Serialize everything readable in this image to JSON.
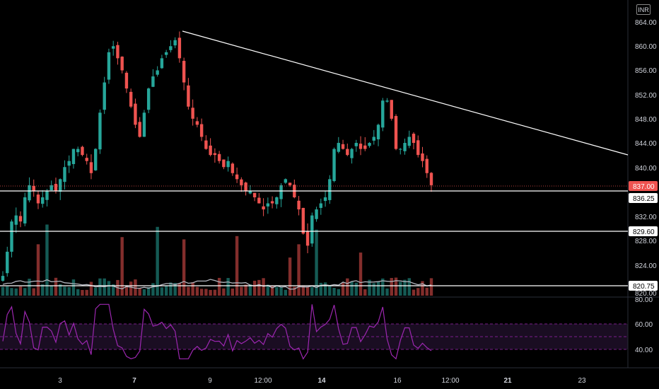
{
  "currency": "INR",
  "price_axis": {
    "ticks": [
      "864.00",
      "860.00",
      "856.00",
      "852.00",
      "848.00",
      "844.00",
      "840.00",
      "832.00",
      "828.00",
      "824.00",
      "820.00"
    ],
    "tick_values": [
      864,
      860,
      856,
      852,
      848,
      844,
      840,
      832,
      828,
      824,
      820
    ]
  },
  "price_badges": {
    "last": "837.00",
    "level_1": "836.25",
    "level_2": "829.60",
    "level_3": "820.75"
  },
  "rsi_axis": {
    "ticks": [
      "80.00",
      "60.00",
      "40.00"
    ],
    "tick_values": [
      80,
      60,
      40
    ]
  },
  "time_axis": {
    "labels": [
      "3",
      "7",
      "9",
      "12:00",
      "14",
      "16",
      "12:00",
      "21",
      "23"
    ],
    "bold": [
      false,
      true,
      false,
      false,
      true,
      false,
      false,
      true,
      false
    ]
  },
  "colors": {
    "up": "#26a69a",
    "down": "#ef5350",
    "rsi": "#9c27b0",
    "volume_ma": "#b2b5be",
    "line": "#ffffff",
    "last_price_bg": "#ef5350"
  },
  "chart_data": {
    "type": "candlestick",
    "price_range": [
      818.5,
      866
    ],
    "rsi_range": [
      27,
      83
    ],
    "horizontal_levels": [
      836.25,
      829.6,
      820.75
    ],
    "last_price": 837.0,
    "rsi_band": [
      40,
      60
    ],
    "rsi_mid": 50,
    "trendline": {
      "from": {
        "x": "7",
        "y": 863.4
      },
      "to": {
        "x": "past 23",
        "y": 842.2
      }
    },
    "close_series": [
      822,
      826,
      831,
      832,
      831,
      835,
      837,
      836,
      834,
      835,
      836,
      837,
      836,
      838,
      840,
      841,
      843,
      843,
      842,
      841,
      839,
      843,
      849,
      854,
      859,
      860,
      858,
      856,
      853,
      850,
      847,
      845,
      849,
      853,
      855,
      856,
      858,
      859,
      860,
      861,
      858,
      854,
      850,
      848,
      847,
      845,
      843,
      842,
      842,
      841,
      840,
      841,
      839,
      838,
      837,
      836,
      836,
      835,
      834,
      833,
      834,
      834,
      835,
      837,
      838,
      837,
      835,
      833,
      829,
      827,
      832,
      833,
      834,
      835,
      838,
      843,
      844,
      843,
      842,
      843,
      844,
      843,
      843,
      844,
      845,
      847,
      851,
      851,
      848,
      843,
      843,
      844,
      845,
      844,
      842,
      841,
      839,
      837
    ]
  }
}
